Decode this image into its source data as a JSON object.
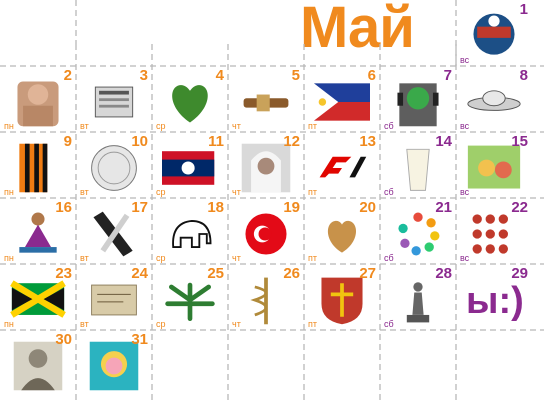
{
  "title": "Май",
  "colors": {
    "orange": "#f08a1e",
    "purple": "#8b2a8f",
    "line": "#b8b8b8"
  },
  "cells": [
    {
      "day": "1",
      "weekday": "вс",
      "icon": "badge-icon",
      "color": "purple",
      "row": 0,
      "col": 6
    },
    {
      "day": "2",
      "weekday": "пн",
      "icon": "portrait-man-icon",
      "color": "orange",
      "row": 1,
      "col": 0
    },
    {
      "day": "3",
      "weekday": "вт",
      "icon": "newspapers-icon",
      "color": "orange",
      "row": 1,
      "col": 1
    },
    {
      "day": "4",
      "weekday": "ср",
      "icon": "leaf-heart-icon",
      "color": "orange",
      "row": 1,
      "col": 2
    },
    {
      "day": "5",
      "weekday": "чт",
      "icon": "wooden-tool-icon",
      "color": "orange",
      "row": 1,
      "col": 3
    },
    {
      "day": "6",
      "weekday": "пт",
      "icon": "philippines-flag-icon",
      "color": "orange",
      "row": 1,
      "col": 4
    },
    {
      "day": "7",
      "weekday": "сб",
      "icon": "headphones-man-icon",
      "color": "purple",
      "row": 1,
      "col": 5
    },
    {
      "day": "8",
      "weekday": "вс",
      "icon": "ufo-icon",
      "color": "purple",
      "row": 1,
      "col": 6
    },
    {
      "day": "9",
      "weekday": "пн",
      "icon": "st-george-ribbon-icon",
      "color": "orange",
      "row": 2,
      "col": 0
    },
    {
      "day": "10",
      "weekday": "вт",
      "icon": "coin-icon",
      "color": "orange",
      "row": 2,
      "col": 1
    },
    {
      "day": "11",
      "weekday": "ср",
      "icon": "laos-flag-icon",
      "color": "orange",
      "row": 2,
      "col": 2
    },
    {
      "day": "12",
      "weekday": "чт",
      "icon": "nurse-portrait-icon",
      "color": "orange",
      "row": 2,
      "col": 3
    },
    {
      "day": "13",
      "weekday": "пт",
      "icon": "f1-logo-icon",
      "color": "orange",
      "row": 2,
      "col": 4
    },
    {
      "day": "14",
      "weekday": "сб",
      "icon": "milk-glass-icon",
      "color": "purple",
      "row": 2,
      "col": 5
    },
    {
      "day": "15",
      "weekday": "вс",
      "icon": "cartoon-icon",
      "color": "purple",
      "row": 2,
      "col": 6
    },
    {
      "day": "16",
      "weekday": "пн",
      "icon": "dancer-icon",
      "color": "orange",
      "row": 3,
      "col": 0
    },
    {
      "day": "17",
      "weekday": "вт",
      "icon": "black-ribbon-icon",
      "color": "orange",
      "row": 3,
      "col": 1
    },
    {
      "day": "18",
      "weekday": "ср",
      "icon": "mammoth-icon",
      "color": "orange",
      "row": 3,
      "col": 2
    },
    {
      "day": "19",
      "weekday": "чт",
      "icon": "turkey-badge-icon",
      "color": "orange",
      "row": 3,
      "col": 3
    },
    {
      "day": "20",
      "weekday": "пт",
      "icon": "potato-heart-icon",
      "color": "orange",
      "row": 3,
      "col": 4
    },
    {
      "day": "21",
      "weekday": "сб",
      "icon": "color-dots-icon",
      "color": "purple",
      "row": 3,
      "col": 5
    },
    {
      "day": "22",
      "weekday": "вс",
      "icon": "ladybugs-icon",
      "color": "purple",
      "row": 3,
      "col": 6
    },
    {
      "day": "23",
      "weekday": "пн",
      "icon": "jamaica-flag-icon",
      "color": "orange",
      "row": 4,
      "col": 0
    },
    {
      "day": "24",
      "weekday": "вт",
      "icon": "postage-icon",
      "color": "orange",
      "row": 4,
      "col": 1
    },
    {
      "day": "25",
      "weekday": "ср",
      "icon": "cannabis-leaf-icon",
      "color": "orange",
      "row": 4,
      "col": 2
    },
    {
      "day": "26",
      "weekday": "чт",
      "icon": "caduceus-icon",
      "color": "orange",
      "row": 4,
      "col": 3
    },
    {
      "day": "27",
      "weekday": "пт",
      "icon": "coat-of-arms-icon",
      "color": "orange",
      "row": 4,
      "col": 4
    },
    {
      "day": "28",
      "weekday": "сб",
      "icon": "statue-icon",
      "color": "purple",
      "row": 4,
      "col": 5
    },
    {
      "day": "29",
      "weekday": "",
      "icon": "smiley-text",
      "text": "ы:)",
      "color": "purple",
      "row": 4,
      "col": 6
    },
    {
      "day": "30",
      "weekday": "",
      "icon": "engraving-portrait-icon",
      "color": "orange",
      "row": 5,
      "col": 0
    },
    {
      "day": "31",
      "weekday": "",
      "icon": "pop-art-portrait-icon",
      "color": "orange",
      "row": 5,
      "col": 1
    }
  ]
}
